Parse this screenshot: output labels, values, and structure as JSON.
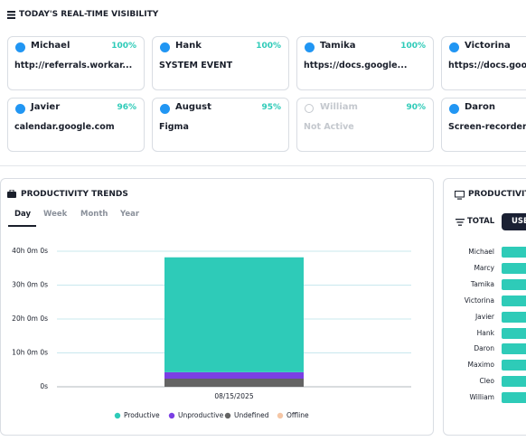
{
  "header": {
    "title": "TODAY'S REAL-TIME VISIBILITY"
  },
  "cards": [
    {
      "name": "Michael",
      "percent": "100%",
      "activity": "http://referrals.workar...",
      "active": true
    },
    {
      "name": "Hank",
      "percent": "100%",
      "activity": "SYSTEM EVENT",
      "active": true
    },
    {
      "name": "Tamika",
      "percent": "100%",
      "activity": "https://docs.google...",
      "active": true
    },
    {
      "name": "Victorina",
      "percent": "",
      "activity": "https://docs.google",
      "active": true
    },
    {
      "name": "Javier",
      "percent": "96%",
      "activity": "calendar.google.com",
      "active": true
    },
    {
      "name": "August",
      "percent": "95%",
      "activity": "Figma",
      "active": true
    },
    {
      "name": "William",
      "percent": "90%",
      "activity": "Not Active",
      "active": false
    },
    {
      "name": "Daron",
      "percent": "",
      "activity": "Screen-recorder-m",
      "active": true
    }
  ],
  "productivity_trends": {
    "title": "PRODUCTIVITY TRENDS",
    "tabs": [
      "Day",
      "Week",
      "Month",
      "Year"
    ],
    "selected_tab": 0
  },
  "chart_data": {
    "type": "bar",
    "stacked": true,
    "categories": [
      "08/15/2025"
    ],
    "series": [
      {
        "name": "Productive",
        "color": "#2ecbb8",
        "values": [
          33.9
        ]
      },
      {
        "name": "Unproductive",
        "color": "#7b3fe4",
        "values": [
          1.9
        ]
      },
      {
        "name": "Undefined",
        "color": "#646464",
        "values": [
          2.4
        ]
      },
      {
        "name": "Offline",
        "color": "#f5c6a5",
        "values": [
          0
        ]
      }
    ],
    "ylim": [
      0,
      40
    ],
    "yticks": [
      {
        "value": 0,
        "label": "0s"
      },
      {
        "value": 10,
        "label": "10h 0m 0s"
      },
      {
        "value": 20,
        "label": "20h 0m 0s"
      },
      {
        "value": 30,
        "label": "30h 0m 0s"
      },
      {
        "value": 40,
        "label": "40h 0m 0s"
      }
    ],
    "grid": true,
    "legend": "bottom"
  },
  "productivity_panel": {
    "title": "PRODUCTIVIT",
    "filter": "TOTAL",
    "button": "USE",
    "users": [
      "Michael",
      "Marcy",
      "Tamika",
      "Victorina",
      "Javier",
      "Hank",
      "Daron",
      "Maximo",
      "Cleo",
      "William"
    ]
  }
}
